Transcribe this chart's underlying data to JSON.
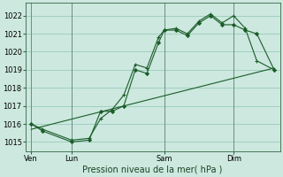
{
  "background_color": "#cce8df",
  "grid_color": "#99ccbb",
  "line_color": "#1a5c28",
  "title": "Pression niveau de la mer( hPa )",
  "ylim": [
    1014.5,
    1022.7
  ],
  "yticks": [
    1015,
    1016,
    1017,
    1018,
    1019,
    1020,
    1021,
    1022
  ],
  "xlim": [
    0,
    22
  ],
  "day_labels": [
    "Ven",
    "Lun",
    "Sam",
    "Dim"
  ],
  "day_positions": [
    0.5,
    4,
    12,
    18
  ],
  "vline_positions": [
    0.5,
    4,
    12,
    18
  ],
  "series1_x": [
    0.5,
    1.5,
    4.0,
    5.5,
    6.5,
    7.5,
    8.5,
    9.5,
    10.5,
    11.5,
    12.0,
    13.0,
    14.0,
    15.0,
    16.0,
    17.0,
    18.0,
    19.0,
    20.0,
    21.5
  ],
  "series1_y": [
    1016.0,
    1015.6,
    1015.0,
    1015.1,
    1016.7,
    1016.7,
    1017.0,
    1019.0,
    1018.8,
    1020.5,
    1021.2,
    1021.2,
    1020.9,
    1021.6,
    1022.0,
    1021.5,
    1021.5,
    1021.2,
    1021.0,
    1019.0
  ],
  "series2_x": [
    0.5,
    1.5,
    4.0,
    5.5,
    6.5,
    7.5,
    8.5,
    9.5,
    10.5,
    11.5,
    12.0,
    13.0,
    14.0,
    15.0,
    16.0,
    17.0,
    18.0,
    19.0,
    20.0,
    21.5
  ],
  "series2_y": [
    1016.0,
    1015.7,
    1015.1,
    1015.2,
    1016.3,
    1016.8,
    1017.6,
    1019.3,
    1019.1,
    1020.8,
    1021.2,
    1021.3,
    1021.0,
    1021.7,
    1022.1,
    1021.6,
    1022.0,
    1021.3,
    1019.5,
    1019.0
  ],
  "series3_x": [
    0.5,
    21.5
  ],
  "series3_y": [
    1015.7,
    1019.1
  ],
  "title_fontsize": 7,
  "tick_fontsize": 6
}
